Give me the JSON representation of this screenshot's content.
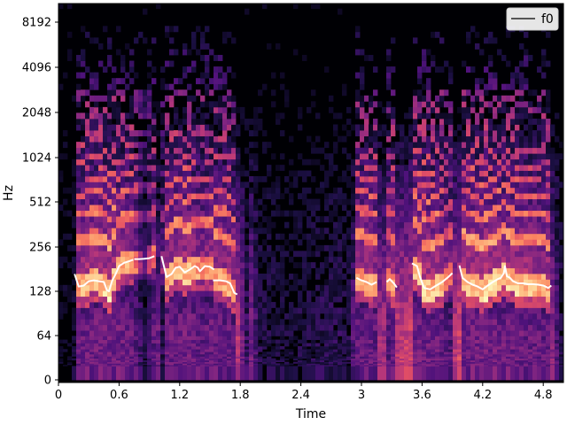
{
  "chart_data": {
    "type": "heatmap",
    "subtype": "spectrogram",
    "colormap": "magma",
    "xlabel": "Time",
    "ylabel": "Hz",
    "x_unit": "seconds",
    "xlim": [
      0,
      5.0
    ],
    "y_scale": "log",
    "ylim": [
      0,
      11025
    ],
    "x_ticks": [
      0,
      0.6,
      1.2,
      1.8,
      2.4,
      3.0,
      3.6,
      4.2,
      4.8
    ],
    "x_tick_labels": [
      "0",
      "0.6",
      "1.2",
      "1.8",
      "2.4",
      "3",
      "3.6",
      "4.2",
      "4.8"
    ],
    "y_ticks": [
      0,
      64,
      128,
      256,
      512,
      1024,
      2048,
      4096,
      8192
    ],
    "y_tick_labels": [
      "0",
      "64",
      "128",
      "256",
      "512",
      "1024",
      "2048",
      "4096",
      "8192"
    ],
    "legend": {
      "position": "top-right",
      "entries": [
        "f0"
      ]
    },
    "series": [
      {
        "name": "f0",
        "color": "#ffffff",
        "segments": [
          [
            [
              0.16,
              168
            ],
            [
              0.2,
              138
            ],
            [
              0.25,
              140
            ],
            [
              0.3,
              150
            ],
            [
              0.35,
              152
            ],
            [
              0.4,
              150
            ],
            [
              0.45,
              148
            ],
            [
              0.48,
              130
            ],
            [
              0.5,
              128
            ],
            [
              0.53,
              150
            ],
            [
              0.57,
              170
            ],
            [
              0.6,
              190
            ],
            [
              0.65,
              200
            ],
            [
              0.7,
              205
            ],
            [
              0.74,
              210
            ]
          ],
          [
            [
              0.75,
              212
            ],
            [
              0.8,
              212
            ],
            [
              0.85,
              213
            ],
            [
              0.9,
              215
            ],
            [
              0.95,
              222
            ]
          ],
          [
            [
              1.02,
              222
            ],
            [
              1.07,
              160
            ],
            [
              1.12,
              168
            ],
            [
              1.16,
              185
            ],
            [
              1.2,
              188
            ],
            [
              1.25,
              172
            ],
            [
              1.3,
              180
            ],
            [
              1.35,
              190
            ],
            [
              1.38,
              185
            ],
            [
              1.4,
              175
            ],
            [
              1.45,
              190
            ],
            [
              1.5,
              188
            ],
            [
              1.54,
              180
            ]
          ],
          [
            [
              1.53,
              152
            ],
            [
              1.6,
              152
            ],
            [
              1.66,
              150
            ],
            [
              1.7,
              145
            ],
            [
              1.74,
              125
            ],
            [
              1.77,
              122
            ]
          ],
          [
            [
              2.95,
              158
            ],
            [
              3.0,
              152
            ],
            [
              3.05,
              148
            ],
            [
              3.1,
              142
            ],
            [
              3.15,
              148
            ]
          ],
          [
            [
              3.25,
              148
            ],
            [
              3.28,
              155
            ],
            [
              3.32,
              145
            ],
            [
              3.35,
              136
            ]
          ],
          [
            [
              3.5,
              198
            ],
            [
              3.55,
              190
            ],
            [
              3.58,
              160
            ],
            [
              3.62,
              135
            ],
            [
              3.68,
              132
            ],
            [
              3.74,
              140
            ],
            [
              3.8,
              148
            ],
            [
              3.86,
              160
            ],
            [
              3.9,
              170
            ]
          ],
          [
            [
              3.97,
              192
            ],
            [
              4.0,
              158
            ],
            [
              4.05,
              148
            ],
            [
              4.1,
              142
            ],
            [
              4.15,
              138
            ],
            [
              4.2,
              132
            ],
            [
              4.25,
              140
            ],
            [
              4.3,
              148
            ],
            [
              4.35,
              155
            ],
            [
              4.38,
              158
            ],
            [
              4.41,
              170
            ],
            [
              4.42,
              190
            ],
            [
              4.44,
              162
            ],
            [
              4.47,
              158
            ],
            [
              4.5,
              150
            ],
            [
              4.55,
              145
            ],
            [
              4.6,
              145
            ],
            [
              4.65,
              143
            ],
            [
              4.7,
              143
            ],
            [
              4.75,
              142
            ],
            [
              4.8,
              140
            ],
            [
              4.85,
              135
            ],
            [
              4.88,
              140
            ]
          ]
        ]
      }
    ],
    "energy_profile": {
      "description": "relative signal energy over time (0-1), drawn as spectrogram brightness",
      "time": [
        0,
        0.15,
        0.2,
        0.55,
        0.75,
        0.85,
        0.95,
        1.02,
        1.05,
        1.3,
        1.45,
        1.5,
        1.8,
        1.85,
        1.9,
        2.0,
        2.3,
        2.5,
        2.7,
        2.9,
        2.95,
        3.1,
        3.2,
        3.3,
        3.45,
        3.6,
        3.75,
        3.9,
        3.95,
        4.3,
        4.6,
        4.85,
        5.0
      ],
      "level": [
        0.05,
        0.05,
        0.9,
        0.95,
        0.9,
        0.3,
        0.85,
        0.2,
        0.9,
        0.95,
        0.8,
        0.9,
        0.8,
        0.2,
        0.6,
        0.2,
        0.15,
        0.2,
        0.25,
        0.2,
        0.85,
        0.9,
        0.7,
        0.85,
        0.9,
        0.95,
        0.9,
        0.7,
        0.95,
        0.95,
        0.9,
        0.85,
        0.1
      ]
    }
  }
}
